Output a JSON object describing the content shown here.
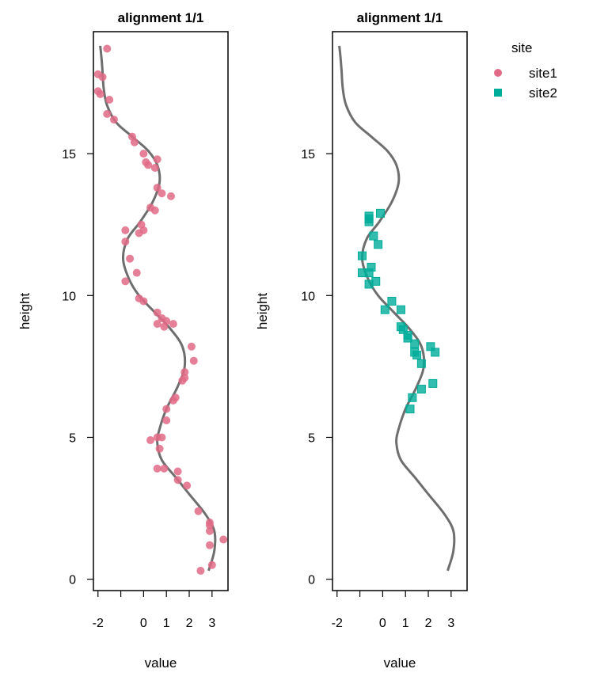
{
  "chart_data": {
    "type": "scatter",
    "colors": {
      "site1": "#E16A86",
      "site2": "#00AD9A",
      "curve": "#555555"
    },
    "legend": {
      "title": "site",
      "position": "top-right",
      "items": [
        "site1",
        "site2"
      ]
    },
    "curve": {
      "name": "",
      "points": [
        [
          2.85,
          0.3
        ],
        [
          3.1,
          1.0
        ],
        [
          3.1,
          1.7
        ],
        [
          2.7,
          2.3
        ],
        [
          2.0,
          3.0
        ],
        [
          1.4,
          3.6
        ],
        [
          0.8,
          4.2
        ],
        [
          0.6,
          4.8
        ],
        [
          0.7,
          5.3
        ],
        [
          1.0,
          6.0
        ],
        [
          1.5,
          6.8
        ],
        [
          1.8,
          7.5
        ],
        [
          1.7,
          8.2
        ],
        [
          1.2,
          8.8
        ],
        [
          0.5,
          9.4
        ],
        [
          -0.2,
          10.0
        ],
        [
          -0.65,
          10.6
        ],
        [
          -0.9,
          11.3
        ],
        [
          -0.7,
          12.0
        ],
        [
          -0.15,
          12.6
        ],
        [
          0.4,
          13.3
        ],
        [
          0.7,
          14.0
        ],
        [
          0.6,
          14.6
        ],
        [
          0.2,
          15.1
        ],
        [
          -0.5,
          15.6
        ],
        [
          -1.2,
          16.1
        ],
        [
          -1.6,
          16.7
        ],
        [
          -1.75,
          17.3
        ],
        [
          -1.8,
          17.9
        ],
        [
          -1.85,
          18.4
        ],
        [
          -1.9,
          18.8
        ]
      ]
    },
    "panels": [
      {
        "title": "alignment 1/1",
        "xlabel": "value",
        "ylabel": "height",
        "xlim": [
          -2.2,
          3.7
        ],
        "ylim": [
          -0.4,
          19.3
        ],
        "xticks": [
          -2,
          -1,
          0,
          1,
          2,
          3
        ],
        "xtick_labels": [
          "-2",
          "",
          "0",
          "1",
          "2",
          "3"
        ],
        "yticks": [
          0,
          5,
          10,
          15
        ],
        "ytick_labels": [
          "0",
          "5",
          "10",
          "15"
        ],
        "series": [
          {
            "name": "site1",
            "marker": "circle",
            "points": [
              [
                -1.6,
                18.7
              ],
              [
                -2.0,
                17.8
              ],
              [
                -1.8,
                17.7
              ],
              [
                -2.0,
                17.2
              ],
              [
                -1.9,
                17.1
              ],
              [
                -1.5,
                16.9
              ],
              [
                -1.6,
                16.4
              ],
              [
                -1.3,
                16.2
              ],
              [
                -0.5,
                15.6
              ],
              [
                -0.4,
                15.4
              ],
              [
                0.0,
                15.0
              ],
              [
                0.6,
                14.8
              ],
              [
                0.1,
                14.7
              ],
              [
                0.5,
                14.5
              ],
              [
                0.2,
                14.6
              ],
              [
                0.6,
                13.8
              ],
              [
                0.8,
                13.6
              ],
              [
                1.2,
                13.5
              ],
              [
                0.3,
                13.1
              ],
              [
                0.5,
                13.0
              ],
              [
                -0.1,
                12.5
              ],
              [
                0.0,
                12.3
              ],
              [
                -0.2,
                12.2
              ],
              [
                -0.8,
                12.3
              ],
              [
                -0.8,
                11.9
              ],
              [
                -0.6,
                11.3
              ],
              [
                -0.3,
                10.8
              ],
              [
                -0.8,
                10.5
              ],
              [
                -0.2,
                9.9
              ],
              [
                0.0,
                9.8
              ],
              [
                0.6,
                9.4
              ],
              [
                0.8,
                9.2
              ],
              [
                1.0,
                9.1
              ],
              [
                0.6,
                9.0
              ],
              [
                0.9,
                8.9
              ],
              [
                1.3,
                9.0
              ],
              [
                2.1,
                8.2
              ],
              [
                2.2,
                7.7
              ],
              [
                1.8,
                7.3
              ],
              [
                1.8,
                7.1
              ],
              [
                1.7,
                7.0
              ],
              [
                1.4,
                6.4
              ],
              [
                1.3,
                6.3
              ],
              [
                1.0,
                6.0
              ],
              [
                1.0,
                5.6
              ],
              [
                0.8,
                5.0
              ],
              [
                0.6,
                5.0
              ],
              [
                0.3,
                4.9
              ],
              [
                0.7,
                4.6
              ],
              [
                0.9,
                3.9
              ],
              [
                0.6,
                3.9
              ],
              [
                1.5,
                3.8
              ],
              [
                1.5,
                3.5
              ],
              [
                1.9,
                3.3
              ],
              [
                2.4,
                2.4
              ],
              [
                2.9,
                2.0
              ],
              [
                2.9,
                1.9
              ],
              [
                2.9,
                1.7
              ],
              [
                3.5,
                1.4
              ],
              [
                2.9,
                1.2
              ],
              [
                3.0,
                0.5
              ],
              [
                2.5,
                0.3
              ]
            ]
          }
        ]
      },
      {
        "title": "alignment 1/1",
        "xlabel": "value",
        "ylabel": "height",
        "xlim": [
          -2.2,
          3.7
        ],
        "ylim": [
          -0.4,
          19.3
        ],
        "xticks": [
          -2,
          -1,
          0,
          1,
          2,
          3
        ],
        "xtick_labels": [
          "-2",
          "",
          "0",
          "1",
          "2",
          "3"
        ],
        "yticks": [
          0,
          5,
          10,
          15
        ],
        "ytick_labels": [
          "0",
          "5",
          "10",
          "15"
        ],
        "series": [
          {
            "name": "site2",
            "marker": "square",
            "points": [
              [
                -0.1,
                12.9
              ],
              [
                -0.6,
                12.8
              ],
              [
                -0.6,
                12.7
              ],
              [
                -0.6,
                12.6
              ],
              [
                -0.4,
                12.1
              ],
              [
                -0.2,
                11.8
              ],
              [
                -0.9,
                11.4
              ],
              [
                -0.5,
                11.0
              ],
              [
                -0.9,
                10.8
              ],
              [
                -0.6,
                10.8
              ],
              [
                -0.3,
                10.5
              ],
              [
                -0.6,
                10.4
              ],
              [
                0.4,
                9.8
              ],
              [
                0.8,
                9.5
              ],
              [
                0.1,
                9.5
              ],
              [
                0.8,
                8.9
              ],
              [
                0.9,
                8.8
              ],
              [
                1.1,
                8.6
              ],
              [
                1.1,
                8.5
              ],
              [
                1.4,
                8.3
              ],
              [
                2.1,
                8.2
              ],
              [
                2.3,
                8.0
              ],
              [
                1.4,
                8.0
              ],
              [
                1.5,
                7.9
              ],
              [
                1.7,
                7.6
              ],
              [
                2.2,
                6.9
              ],
              [
                1.7,
                6.7
              ],
              [
                1.3,
                6.4
              ],
              [
                1.2,
                6.0
              ]
            ]
          }
        ]
      }
    ]
  }
}
